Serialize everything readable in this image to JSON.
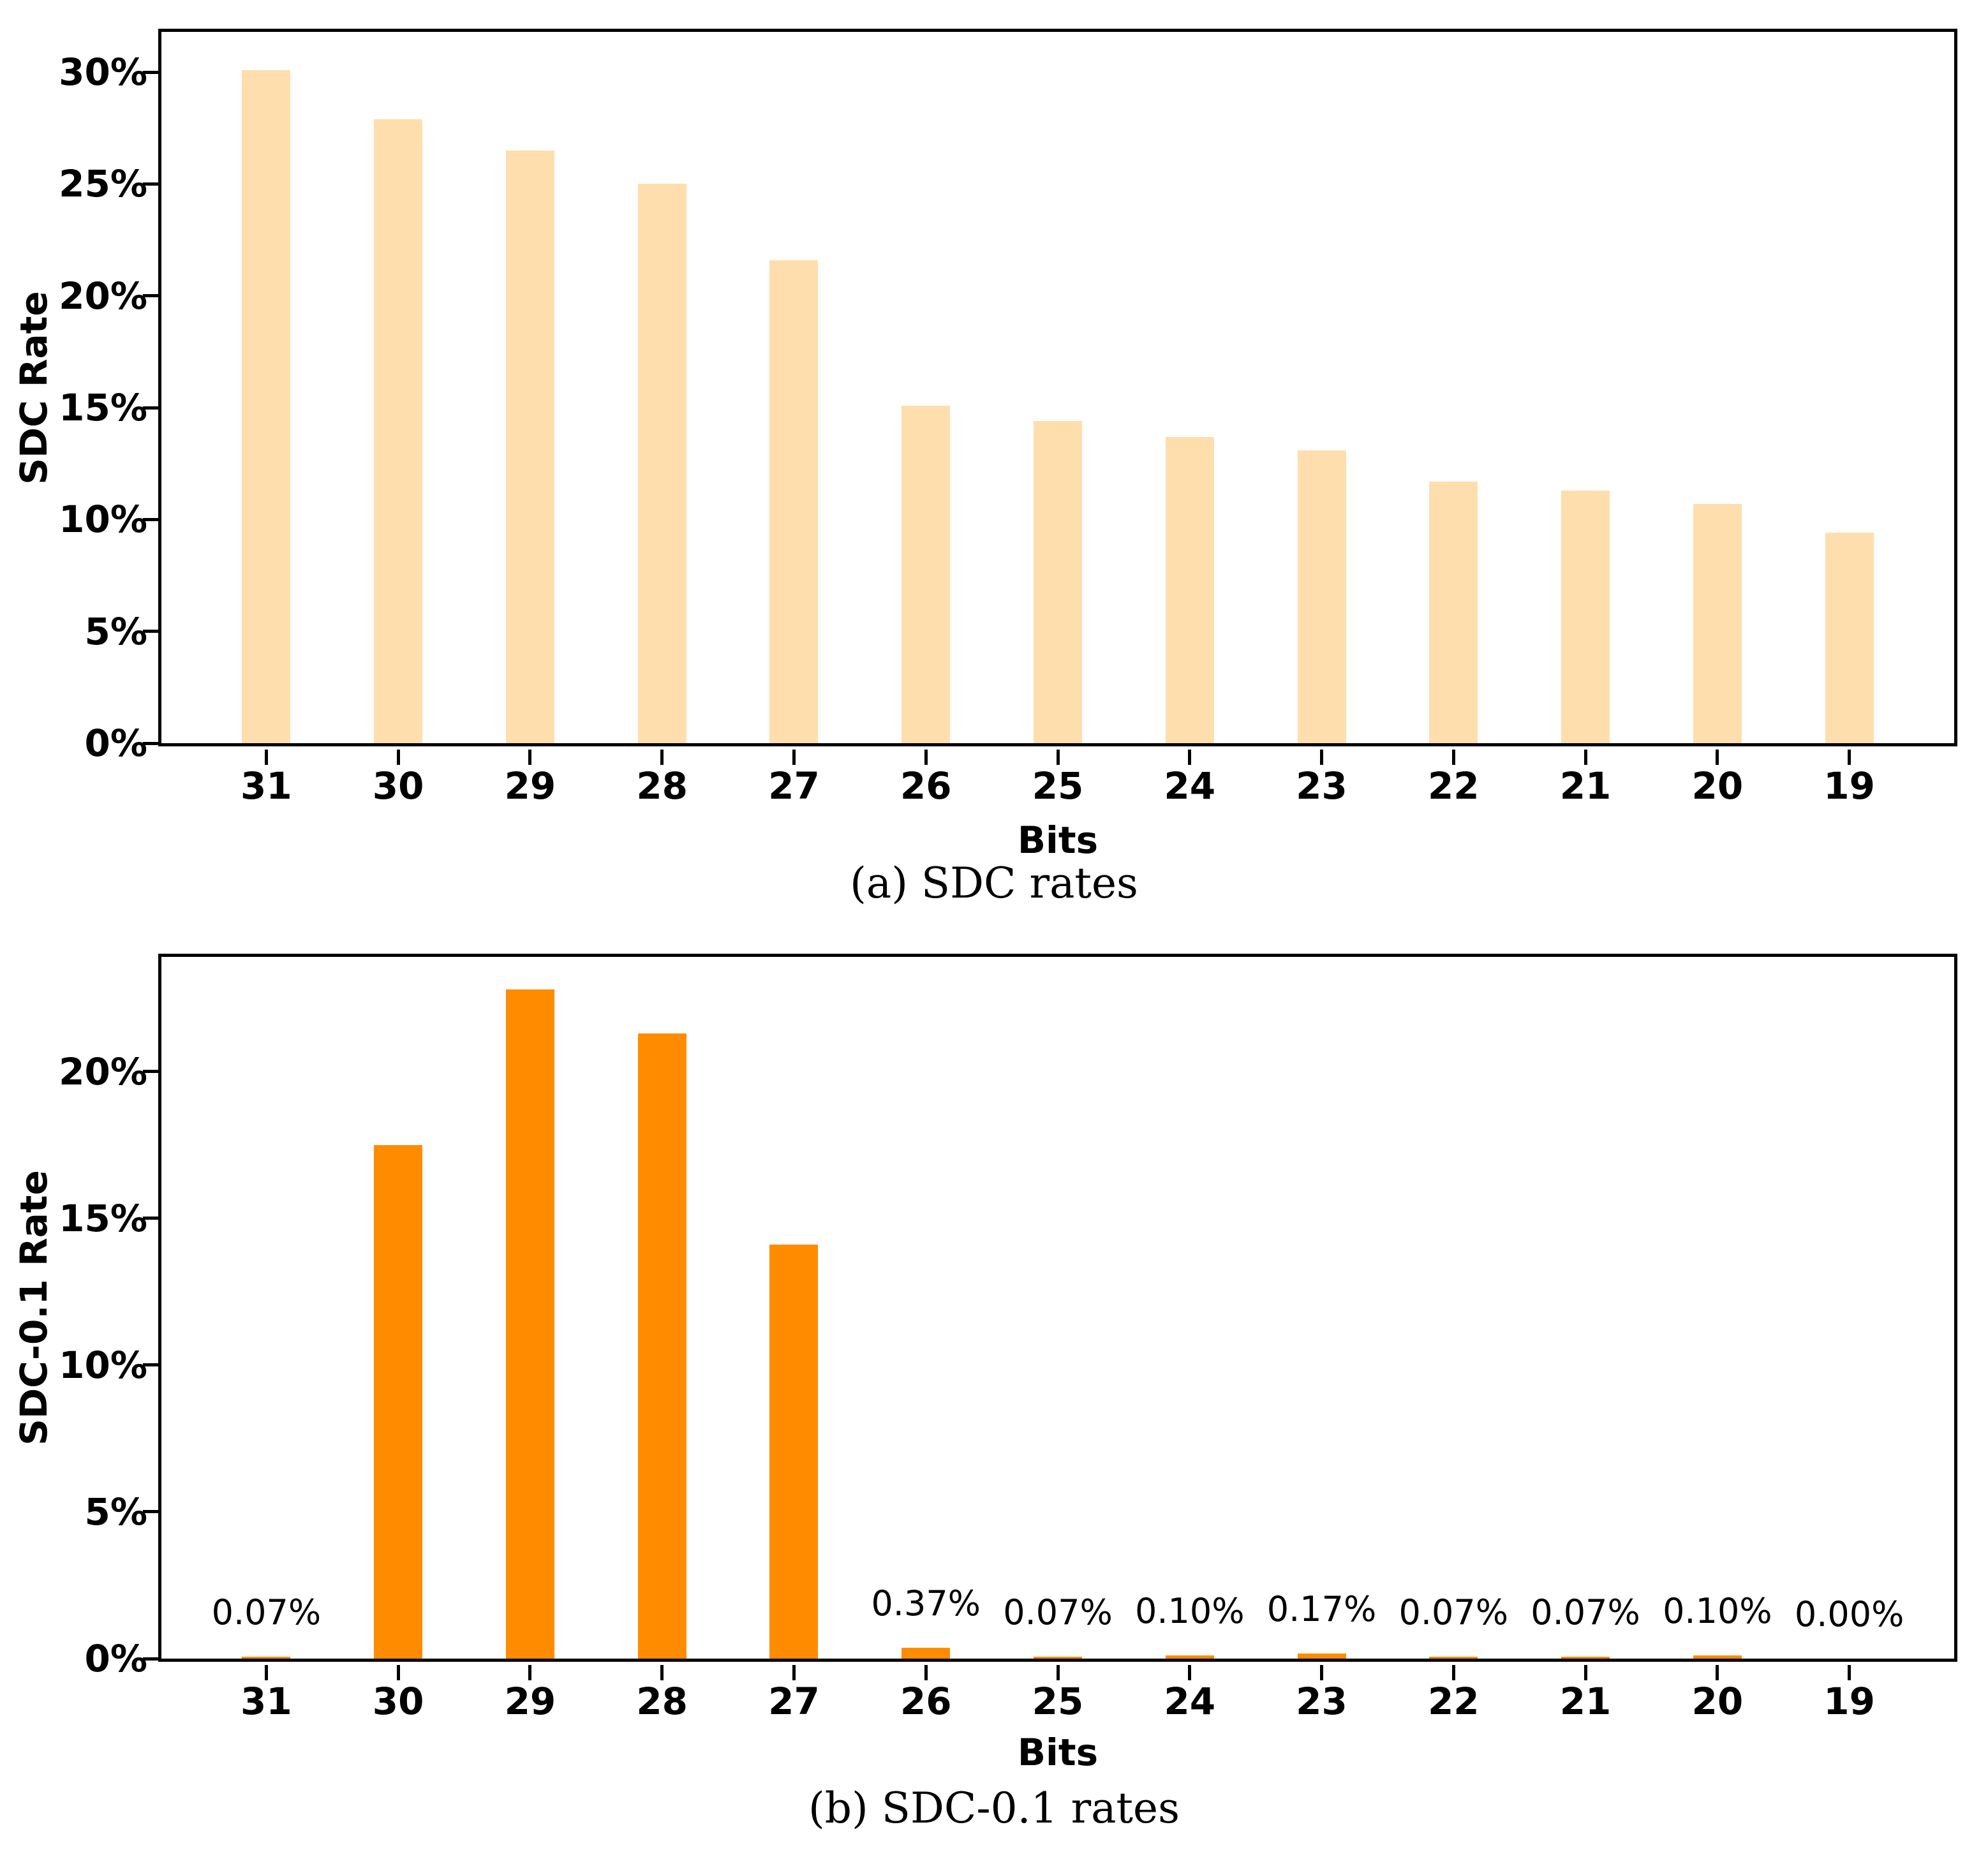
{
  "colors": {
    "background": "#FFFFFF",
    "axis": "#000000",
    "text": "#000000",
    "light_bar": "#FFDEAD",
    "dark_bar": "#FF8C00"
  },
  "chart_data": [
    {
      "type": "bar",
      "title": "(a) SDC rates",
      "xlabel": "Bits",
      "ylabel": "SDC Rate",
      "categories": [
        "31",
        "30",
        "29",
        "28",
        "27",
        "26",
        "25",
        "24",
        "23",
        "22",
        "21",
        "20",
        "19"
      ],
      "values": [
        30.1,
        27.9,
        26.5,
        25.0,
        21.6,
        15.1,
        14.4,
        13.7,
        13.1,
        11.7,
        11.3,
        10.7,
        9.4
      ],
      "bar_labels": [
        null,
        null,
        null,
        null,
        null,
        null,
        null,
        null,
        null,
        null,
        null,
        null,
        null
      ],
      "bar_color": "#FFDEAD",
      "ytick_values": [
        0,
        5,
        10,
        15,
        20,
        25,
        30
      ],
      "ytick_labels": [
        "0%",
        "5%",
        "10%",
        "15%",
        "20%",
        "25%",
        "30%"
      ],
      "ylim": [
        0,
        31.8
      ],
      "grid": false,
      "legend": null
    },
    {
      "type": "bar",
      "title": "(b) SDC-0.1 rates",
      "xlabel": "Bits",
      "ylabel": "SDC-0.1 Rate",
      "categories": [
        "31",
        "30",
        "29",
        "28",
        "27",
        "26",
        "25",
        "24",
        "23",
        "22",
        "21",
        "20",
        "19"
      ],
      "values": [
        0.07,
        17.5,
        22.8,
        21.3,
        14.1,
        0.37,
        0.07,
        0.1,
        0.17,
        0.07,
        0.07,
        0.1,
        0.0
      ],
      "bar_labels": [
        "0.07%",
        null,
        null,
        null,
        null,
        "0.37%",
        "0.07%",
        "0.10%",
        "0.17%",
        "0.07%",
        "0.07%",
        "0.10%",
        "0.00%"
      ],
      "bar_color": "#FF8C00",
      "ytick_values": [
        0,
        5,
        10,
        15,
        20
      ],
      "ytick_labels": [
        "0%",
        "5%",
        "10%",
        "15%",
        "20%"
      ],
      "ylim": [
        0,
        23.9
      ],
      "grid": false,
      "legend": null
    }
  ]
}
